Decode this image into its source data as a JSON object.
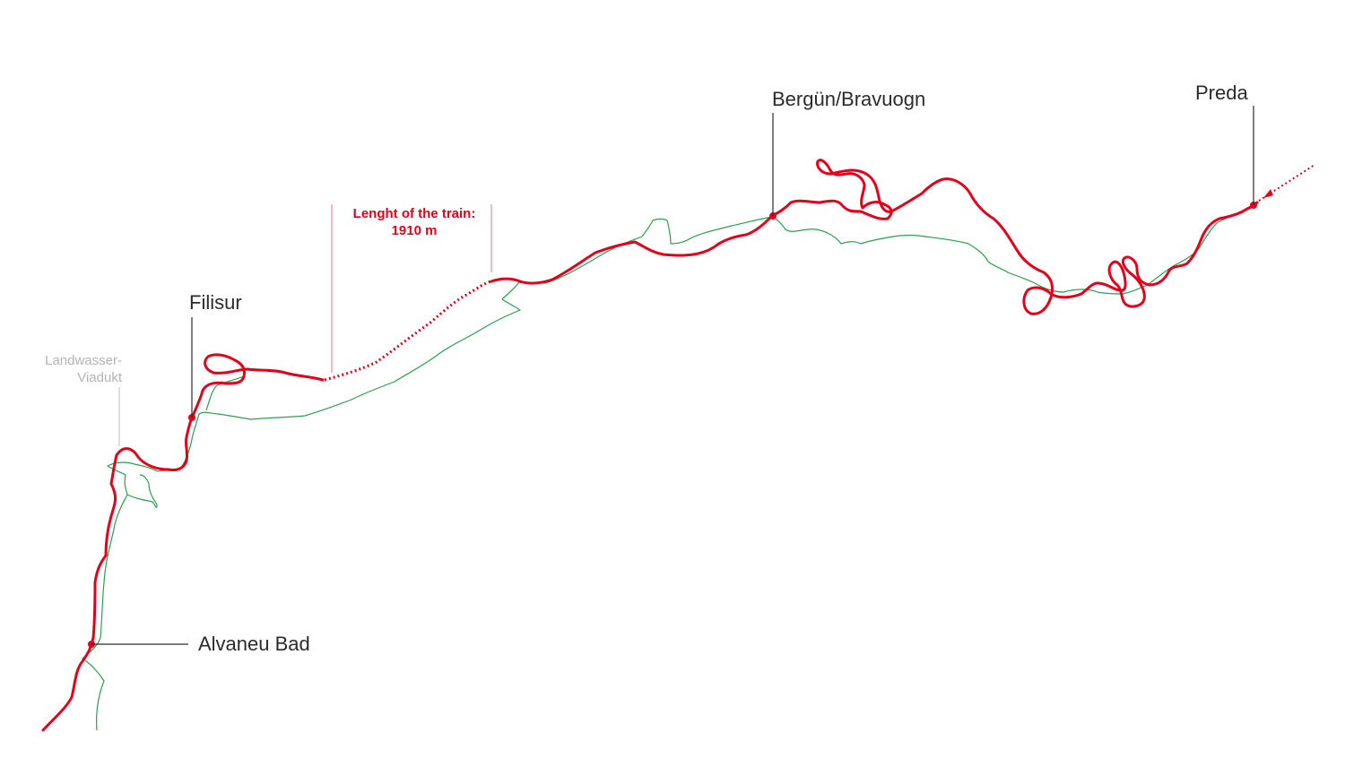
{
  "stations": {
    "alvaneu": "Alvaneu Bad",
    "filisur": "Filisur",
    "bergun": "Bergün/Bravuogn",
    "preda": "Preda"
  },
  "viaduct": {
    "line1": "Landwasser-",
    "line2": "Viadukt"
  },
  "train": {
    "line1": "Lenght of the train:",
    "line2": "1910 m"
  },
  "colors": {
    "route": "#e3001b",
    "river": "#2e9e4f",
    "leader": "#2b2b2b",
    "viaduct_leader": "#c8c8c8",
    "train_leader": "#f08a95"
  }
}
